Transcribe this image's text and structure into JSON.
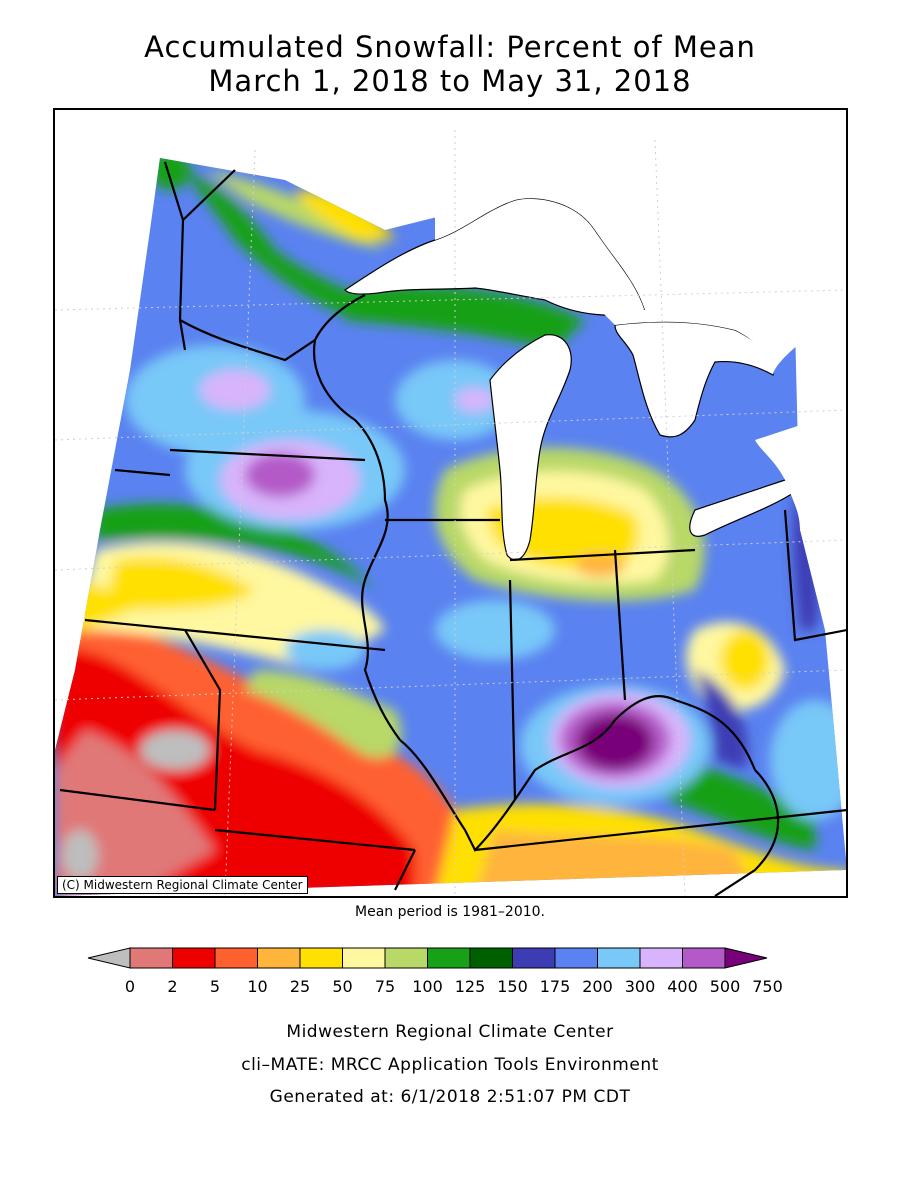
{
  "title_line1": "Accumulated Snowfall: Percent of Mean",
  "title_line2": "March 1, 2018 to May 31, 2018",
  "copyright": "(C) Midwestern Regional Climate Center",
  "mean_period": "Mean period is 1981–2010.",
  "legend": {
    "ticks": [
      "0",
      "2",
      "5",
      "10",
      "25",
      "50",
      "75",
      "100",
      "125",
      "150",
      "175",
      "200",
      "300",
      "400",
      "500",
      "750"
    ],
    "colors": [
      "#bebebe",
      "#e07878",
      "#ee0000",
      "#ff6030",
      "#ffb43c",
      "#ffe000",
      "#fff8a0",
      "#b8d868",
      "#18a018",
      "#006000",
      "#3c3cb4",
      "#5a82f0",
      "#78c8f8",
      "#d8b4fc",
      "#b45ac8",
      "#780078"
    ]
  },
  "footer": {
    "org": "Midwestern Regional Climate Center",
    "tool": "cli–MATE: MRCC Application Tools Environment",
    "generated": "Generated at: 6/1/2018 2:51:07 PM CDT"
  }
}
